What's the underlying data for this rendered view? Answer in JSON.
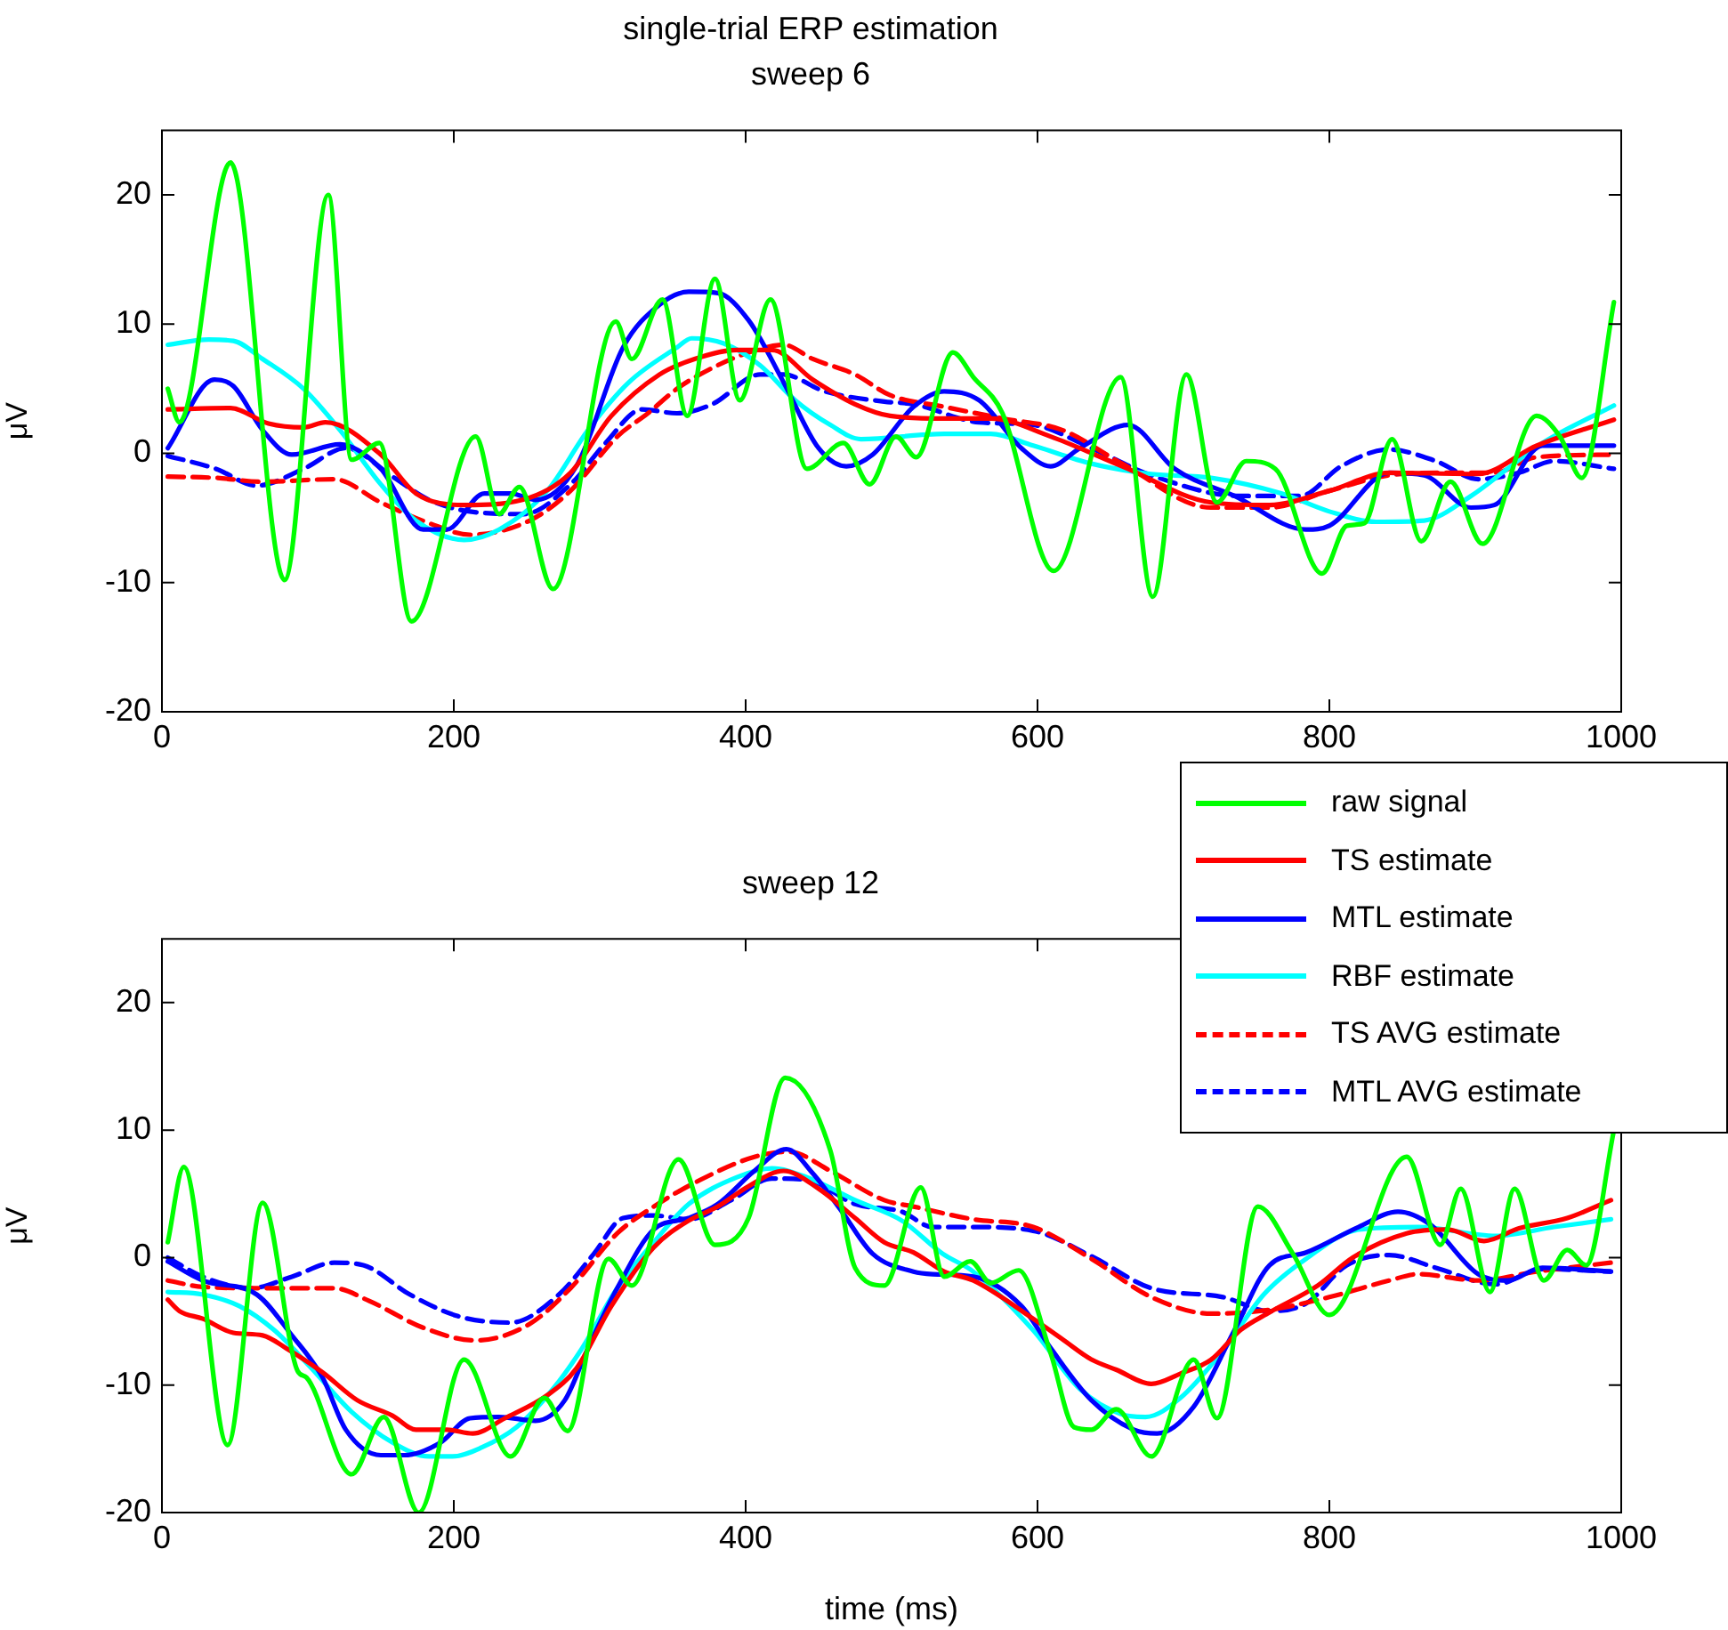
{
  "chart_data": [
    {
      "type": "line",
      "title": "single-trial ERP estimation",
      "subtitle": "sweep 6",
      "ylabel": "μV",
      "xlim": [
        0,
        1000
      ],
      "xticks": [
        0,
        200,
        400,
        600,
        800,
        1000
      ],
      "ylim": [
        -20,
        25
      ],
      "yticks": [
        -20,
        -10,
        0,
        10,
        20
      ],
      "series": [
        {
          "color": "#00ff00",
          "line_style": "solid",
          "x": [
            4,
            12,
            47,
            84,
            114,
            130,
            149,
            171,
            215,
            231,
            245,
            268,
            311,
            322,
            343,
            360,
            379,
            396,
            417,
            442,
            467,
            485,
            503,
            517,
            542,
            556,
            576,
            611,
            657,
            679,
            702,
            723,
            743,
            763,
            795,
            812,
            824,
            843,
            863,
            883,
            905,
            942,
            958,
            973,
            995
          ],
          "values": [
            5,
            2.4,
            22.5,
            -9.8,
            20,
            -0.5,
            0.8,
            -13,
            1.3,
            -4.7,
            -2.6,
            -10.5,
            10.2,
            7.3,
            11.9,
            2.9,
            13.5,
            4.1,
            11.9,
            -1.2,
            0.8,
            -2.4,
            1.3,
            -0.3,
            7.8,
            5.9,
            3.1,
            -9.1,
            5.9,
            -11.1,
            6.1,
            -3.8,
            -0.6,
            -1.2,
            -9.3,
            -5.6,
            -5.4,
            1.1,
            -6.8,
            -2.2,
            -7,
            2.9,
            1.3,
            -1.9,
            11.7
          ]
        },
        {
          "color": "#ff0000",
          "line_style": "solid",
          "x": [
            4,
            47,
            73,
            97,
            112,
            150,
            174,
            207,
            247,
            280,
            308,
            341,
            365,
            394,
            418,
            446,
            475,
            499,
            535,
            568,
            609,
            658,
            719,
            759,
            800,
            841,
            902,
            942,
            995
          ],
          "values": [
            3.4,
            3.5,
            2.3,
            2,
            2.4,
            -0.1,
            -3.1,
            -4,
            -3.6,
            -1.5,
            2.9,
            6.1,
            7.3,
            8,
            8,
            5.7,
            3.8,
            2.9,
            2.7,
            2.7,
            1.3,
            -1,
            -3.8,
            -4,
            -2.9,
            -1.5,
            -1.6,
            0.6,
            2.6
          ]
        },
        {
          "color": "#0000ff",
          "line_style": "solid",
          "x": [
            4,
            36,
            49,
            69,
            89,
            122,
            150,
            179,
            195,
            221,
            239,
            256,
            284,
            316,
            341,
            361,
            381,
            402,
            426,
            450,
            469,
            487,
            515,
            536,
            560,
            589,
            609,
            629,
            662,
            694,
            735,
            784,
            800,
            841,
            865,
            897,
            913,
            946,
            995
          ],
          "values": [
            0.4,
            5.7,
            5.2,
            1.8,
            -0.1,
            0.7,
            -1.2,
            -5.9,
            -5.9,
            -3.1,
            -3.1,
            -3.6,
            -1,
            8.2,
            11.5,
            12.5,
            12.4,
            10.3,
            5.5,
            0.4,
            -1,
            -0.1,
            3.6,
            4.8,
            4.1,
            0.4,
            -1,
            0.4,
            2.2,
            -1.2,
            -3.3,
            -5.9,
            -5.6,
            -1.5,
            -1.7,
            -4.2,
            -4,
            0.6,
            0.6
          ]
        },
        {
          "color": "#00ffff",
          "line_style": "solid",
          "x": [
            4,
            32,
            49,
            69,
            97,
            122,
            150,
            174,
            207,
            231,
            264,
            292,
            320,
            353,
            363,
            385,
            410,
            434,
            458,
            479,
            536,
            568,
            597,
            637,
            678,
            719,
            767,
            800,
            832,
            865,
            897,
            922,
            946,
            995
          ],
          "values": [
            8.4,
            8.8,
            8.7,
            7.3,
            5,
            1.8,
            -2.4,
            -5.2,
            -6.7,
            -5.9,
            -2.9,
            1.8,
            5.5,
            8.2,
            8.9,
            8.5,
            6.8,
            4.1,
            2.2,
            1.1,
            1.5,
            1.5,
            0.6,
            -0.8,
            -1.6,
            -1.9,
            -3.1,
            -4.5,
            -5.3,
            -5.2,
            -3.3,
            -1.2,
            0.8,
            3.7
          ]
        },
        {
          "color": "#ff0000",
          "line_style": "dashed",
          "x": [
            4,
            37,
            69,
            118,
            150,
            183,
            211,
            252,
            280,
            312,
            333,
            353,
            377,
            402,
            426,
            446,
            475,
            499,
            536,
            576,
            617,
            658,
            719,
            759,
            800,
            841,
            881,
            913,
            942,
            995
          ],
          "values": [
            -1.8,
            -1.9,
            -2.2,
            -2,
            -3.8,
            -5.4,
            -6.3,
            -5.2,
            -2.9,
            1.3,
            3.1,
            5,
            6.6,
            7.8,
            8.4,
            7.3,
            6.1,
            4.5,
            3.6,
            2.7,
            1.8,
            -0.8,
            -4.2,
            -4.2,
            -2.9,
            -1.7,
            -1.5,
            -1.5,
            -0.3,
            -0.1
          ]
        },
        {
          "color": "#0000ff",
          "line_style": "dashed",
          "x": [
            4,
            37,
            65,
            97,
            126,
            158,
            183,
            211,
            248,
            280,
            304,
            329,
            353,
            377,
            410,
            426,
            454,
            495,
            515,
            560,
            597,
            637,
            678,
            739,
            780,
            808,
            841,
            873,
            902,
            930,
            954,
            995
          ],
          "values": [
            -0.2,
            -1.2,
            -2.5,
            -1.2,
            0.4,
            -1.8,
            -3.6,
            -4.5,
            -4.7,
            -2.4,
            0.8,
            3.4,
            3.1,
            3.8,
            6.1,
            6.1,
            4.8,
            4,
            3.8,
            2.4,
            2.2,
            0.4,
            -1.7,
            -3.3,
            -3.3,
            -1,
            0.3,
            -0.6,
            -2,
            -1.5,
            -0.6,
            -1.2
          ]
        }
      ]
    },
    {
      "type": "line",
      "title": "sweep 12",
      "xlabel": "time (ms)",
      "ylabel": "μV",
      "xlim": [
        0,
        1000
      ],
      "xticks": [
        0,
        200,
        400,
        600,
        800,
        1000
      ],
      "ylim": [
        -20,
        25
      ],
      "yticks": [
        -20,
        -10,
        0,
        10,
        20
      ],
      "legend": "top right",
      "series": [
        {
          "name": "raw signal",
          "color": "#00ff00",
          "line_style": "solid",
          "x": [
            4,
            15,
            45,
            69,
            93,
            99,
            130,
            152,
            176,
            207,
            239,
            262,
            278,
            306,
            322,
            354,
            379,
            402,
            427,
            458,
            475,
            495,
            520,
            536,
            554,
            568,
            587,
            609,
            625,
            637,
            654,
            678,
            707,
            723,
            751,
            775,
            800,
            853,
            876,
            890,
            910,
            927,
            947,
            963,
            976,
            995
          ],
          "values": [
            1.2,
            7.1,
            -14.7,
            4.3,
            -8.9,
            -9.4,
            -17,
            -12.5,
            -20,
            -8,
            -15.6,
            -11,
            -13.6,
            -0.1,
            -2.2,
            7.7,
            1,
            3.1,
            14.1,
            8.4,
            -0.8,
            -2.2,
            5.5,
            -1.5,
            -0.3,
            -2,
            -1,
            -7.5,
            -13.3,
            -13.5,
            -11.9,
            -15.6,
            -8,
            -12.6,
            4,
            0.3,
            -4.5,
            7.9,
            1,
            5.4,
            -2.7,
            5.4,
            -1.8,
            0.6,
            -0.6,
            10
          ]
        },
        {
          "name": "TS estimate",
          "color": "#ff0000",
          "line_style": "solid",
          "x": [
            4,
            12,
            28,
            49,
            69,
            85,
            110,
            134,
            158,
            174,
            195,
            213,
            235,
            264,
            284,
            308,
            337,
            361,
            381,
            402,
            426,
            450,
            475,
            495,
            515,
            536,
            556,
            597,
            617,
            637,
            654,
            678,
            698,
            719,
            739,
            759,
            792,
            816,
            853,
            881,
            906,
            930,
            963,
            993
          ],
          "values": [
            -3.3,
            -4.2,
            -4.8,
            -5.9,
            -6.1,
            -7.1,
            -9,
            -11.2,
            -12.4,
            -13.5,
            -13.5,
            -13.8,
            -12.6,
            -10.8,
            -8.7,
            -3.8,
            0.8,
            2.9,
            4,
            5.6,
            6.8,
            5.4,
            3.1,
            1.2,
            0.4,
            -1.1,
            -1.8,
            -4.8,
            -6.4,
            -8,
            -8.8,
            -9.9,
            -9.1,
            -8,
            -5.7,
            -4.3,
            -2.2,
            0,
            1.9,
            2.2,
            1.3,
            2.3,
            3.1,
            4.5
          ]
        },
        {
          "name": "MTL estimate",
          "color": "#0000ff",
          "line_style": "solid",
          "x": [
            4,
            28,
            65,
            89,
            110,
            126,
            150,
            166,
            191,
            211,
            231,
            256,
            276,
            292,
            312,
            337,
            361,
            381,
            406,
            428,
            446,
            466,
            487,
            515,
            528,
            556,
            589,
            609,
            637,
            666,
            682,
            707,
            735,
            759,
            784,
            820,
            847,
            869,
            902,
            922,
            946,
            993
          ],
          "values": [
            -0.3,
            -1.8,
            -2.9,
            -6.1,
            -9.4,
            -13.5,
            -15.5,
            -15.5,
            -14.5,
            -12.6,
            -12.5,
            -12.8,
            -11.2,
            -7.1,
            -2.4,
            2.2,
            3.1,
            4.2,
            6.8,
            8.5,
            6.6,
            3.6,
            0.3,
            -1.1,
            -1.3,
            -1.5,
            -3.8,
            -7.1,
            -11.2,
            -13.5,
            -13.8,
            -11.7,
            -5.7,
            -0.6,
            0.4,
            2.4,
            3.6,
            2.6,
            -1.3,
            -1.8,
            -0.8,
            -1.1
          ]
        },
        {
          "name": "RBF estimate",
          "color": "#00ffff",
          "line_style": "solid",
          "x": [
            4,
            28,
            53,
            77,
            101,
            130,
            158,
            183,
            199,
            219,
            243,
            268,
            288,
            312,
            337,
            361,
            394,
            418,
            442,
            475,
            507,
            535,
            556,
            597,
            629,
            658,
            674,
            698,
            727,
            755,
            784,
            820,
            861,
            914,
            954,
            993
          ],
          "values": [
            -2.7,
            -2.9,
            -3.8,
            -5.7,
            -8.5,
            -12.1,
            -14.5,
            -15.6,
            -15.6,
            -14.9,
            -13.3,
            -10.3,
            -7.1,
            -2.4,
            1.2,
            4.2,
            6.3,
            7,
            6.3,
            4.5,
            2.9,
            0.3,
            -1.1,
            -5.7,
            -10.3,
            -12.3,
            -12.5,
            -11,
            -7.3,
            -2.9,
            -0.1,
            2.2,
            2.4,
            1.7,
            2.4,
            3
          ]
        },
        {
          "name": "TS AVG estimate",
          "color": "#ff0000",
          "line_style": "dashed",
          "x": [
            4,
            28,
            69,
            118,
            142,
            179,
            215,
            252,
            280,
            312,
            337,
            369,
            406,
            430,
            458,
            495,
            515,
            556,
            597,
            637,
            678,
            719,
            759,
            800,
            841,
            861,
            902,
            942,
            993
          ],
          "values": [
            -1.8,
            -2.3,
            -2.4,
            -2.4,
            -3.4,
            -5.5,
            -6.5,
            -5.2,
            -2.4,
            1.9,
            4,
            6.1,
            7.9,
            8.3,
            6.8,
            4.5,
            4,
            3,
            2.4,
            -0.1,
            -3.1,
            -4.4,
            -4.1,
            -3.1,
            -1.8,
            -1.3,
            -1.8,
            -1.1,
            -0.4
          ]
        },
        {
          "name": "MTL AVG estimate",
          "color": "#0000ff",
          "line_style": "dashed",
          "x": [
            4,
            28,
            61,
            89,
            118,
            138,
            170,
            203,
            239,
            272,
            296,
            316,
            337,
            361,
            390,
            418,
            442,
            475,
            507,
            528,
            556,
            597,
            637,
            678,
            727,
            759,
            784,
            812,
            841,
            873,
            914,
            946,
            993
          ],
          "values": [
            0,
            -1.5,
            -2.4,
            -1.5,
            -0.4,
            -0.6,
            -2.9,
            -4.6,
            -5.1,
            -2.9,
            0.3,
            3.1,
            3.3,
            3,
            4.5,
            6.2,
            6.1,
            4.2,
            3.6,
            2.4,
            2.4,
            2.1,
            0.1,
            -2.4,
            -3.1,
            -4.2,
            -3.6,
            -0.6,
            0.2,
            -0.8,
            -2.1,
            -0.9,
            -1.1
          ]
        }
      ]
    }
  ]
}
